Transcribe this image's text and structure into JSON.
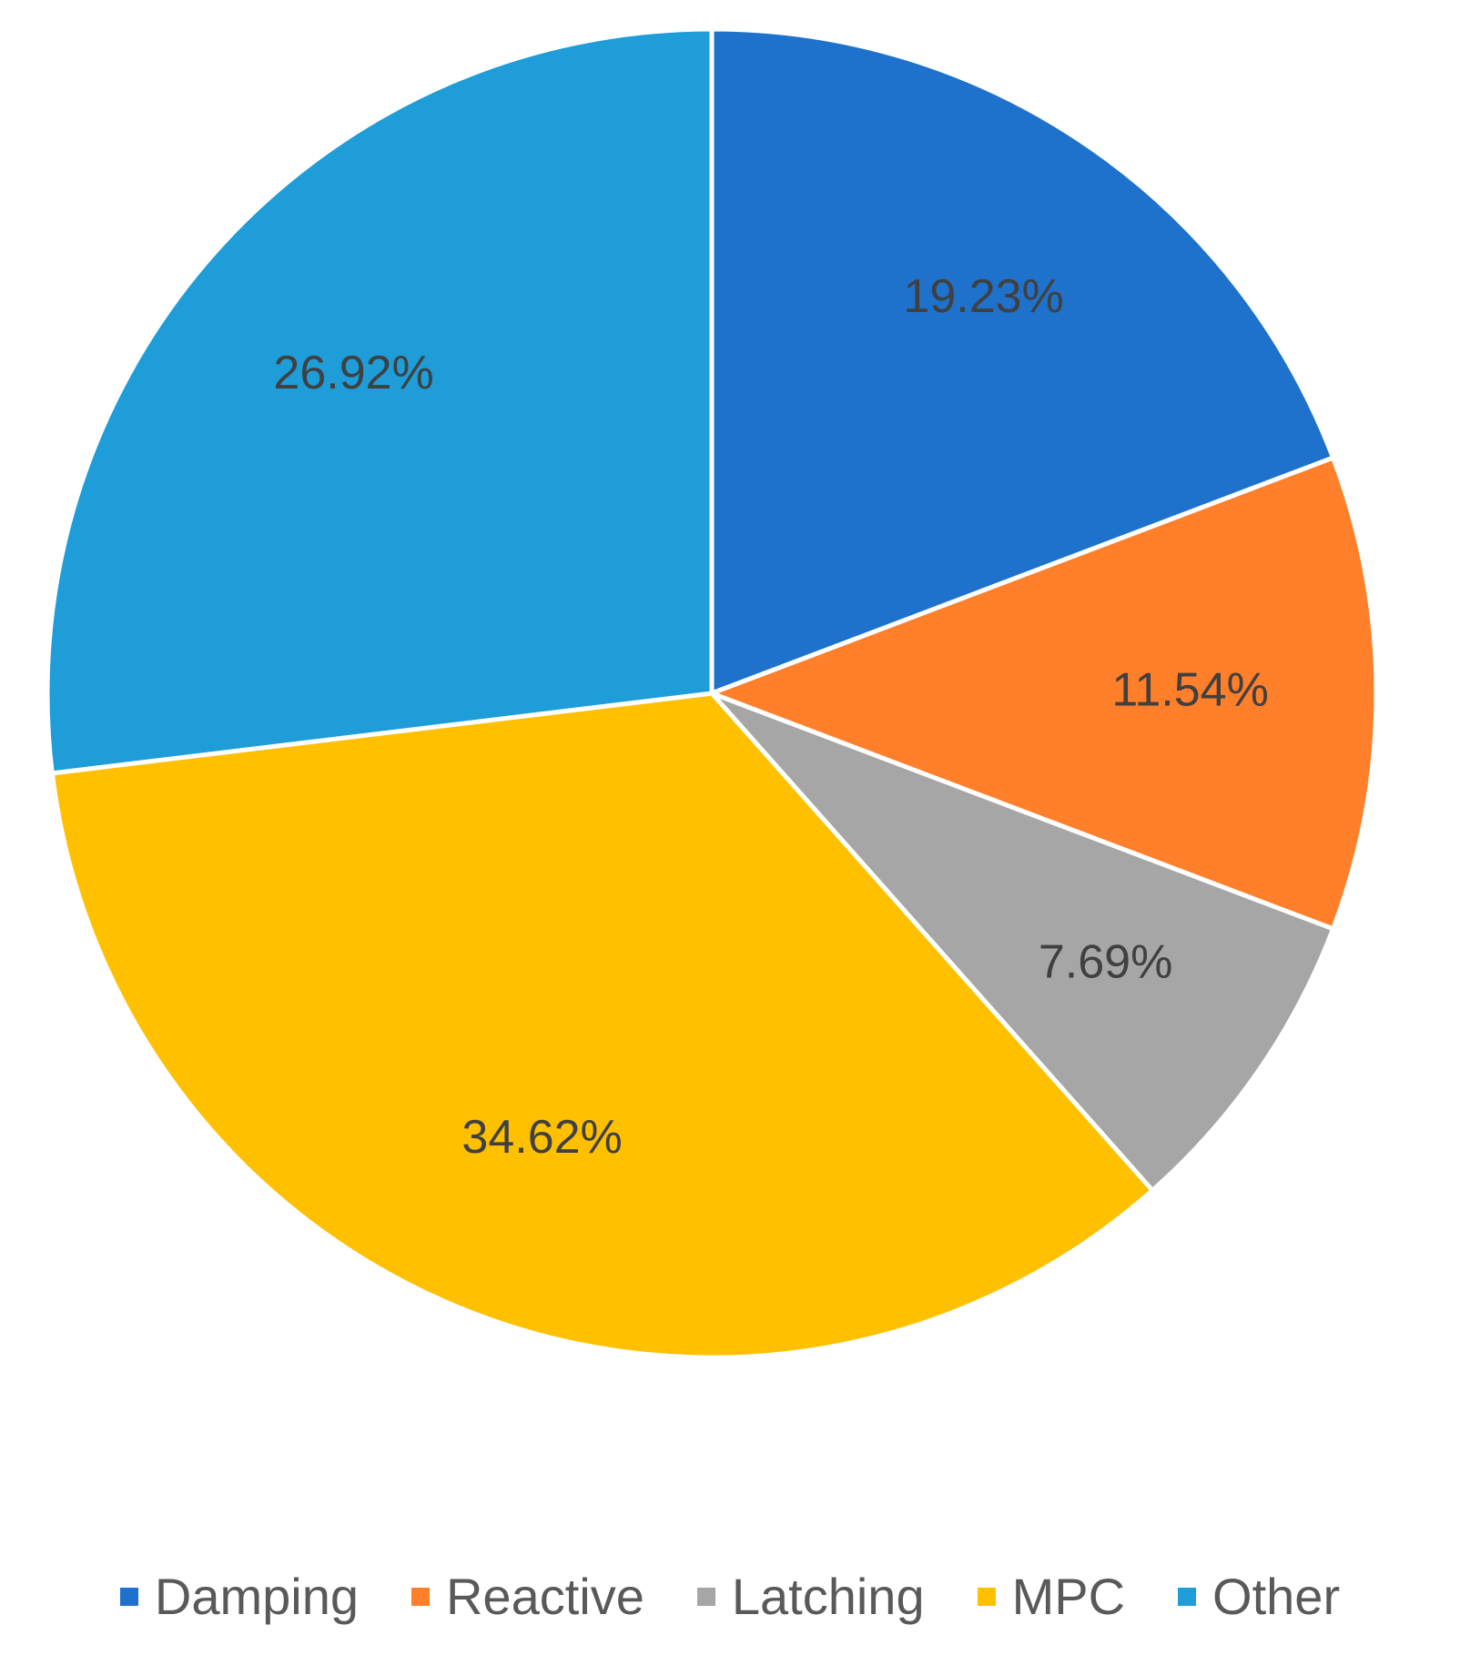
{
  "chart_data": {
    "type": "pie",
    "title": "",
    "slices": [
      {
        "name": "Damping",
        "value": 19.23,
        "label": "19.23%",
        "color": "#1F72CC"
      },
      {
        "name": "Reactive",
        "value": 11.54,
        "label": "11.54%",
        "color": "#FF7F2A"
      },
      {
        "name": "Latching",
        "value": 7.69,
        "label": "7.69%",
        "color": "#A6A6A6"
      },
      {
        "name": "MPC",
        "value": 34.62,
        "label": "34.62%",
        "color": "#FFC000"
      },
      {
        "name": "Other",
        "value": 26.92,
        "label": "26.92%",
        "color": "#1E9DD9"
      }
    ],
    "start_angle": "12 o'clock",
    "direction": "clockwise",
    "legend_position": "bottom",
    "legend": [
      "Damping",
      "Reactive",
      "Latching",
      "MPC",
      "Other"
    ]
  }
}
